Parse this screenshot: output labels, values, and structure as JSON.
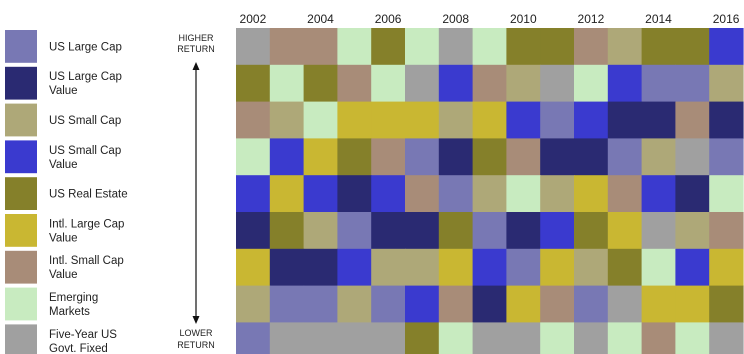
{
  "chart_data": {
    "type": "heatmap",
    "title": "",
    "x_tick_labels": [
      "2002",
      "2004",
      "2006",
      "2008",
      "2010",
      "2012",
      "2014",
      "2016"
    ],
    "years": [
      2002,
      2003,
      2004,
      2005,
      2006,
      2007,
      2008,
      2009,
      2010,
      2011,
      2012,
      2013,
      2014,
      2015,
      2016
    ],
    "y_top_label": [
      "HIGHER",
      "RETURN"
    ],
    "y_bottom_label": [
      "LOWER",
      "RETURN"
    ],
    "asset_classes": [
      {
        "key": "A",
        "label_lines": [
          "US Large Cap"
        ],
        "color": "#7878B4"
      },
      {
        "key": "B",
        "label_lines": [
          "US Large Cap",
          "Value"
        ],
        "color": "#2A2A72"
      },
      {
        "key": "C",
        "label_lines": [
          "US Small Cap"
        ],
        "color": "#AEA878"
      },
      {
        "key": "D",
        "label_lines": [
          "US Small Cap",
          "Value"
        ],
        "color": "#3A3ACF"
      },
      {
        "key": "E",
        "label_lines": [
          "US Real Estate"
        ],
        "color": "#85802A"
      },
      {
        "key": "F",
        "label_lines": [
          "Intl. Large Cap",
          "Value"
        ],
        "color": "#C9B732"
      },
      {
        "key": "G",
        "label_lines": [
          "Intl. Small Cap",
          "Value"
        ],
        "color": "#A88C78"
      },
      {
        "key": "H",
        "label_lines": [
          "Emerging",
          "Markets"
        ],
        "color": "#C8EBC0"
      },
      {
        "key": "I",
        "label_lines": [
          "Five-Year US",
          "Govt. Fixed"
        ],
        "color": "#A0A0A0"
      }
    ],
    "ranking_rows": [
      [
        "I",
        "G",
        "G",
        "H",
        "E",
        "H",
        "I",
        "H",
        "E",
        "E",
        "G",
        "C",
        "E",
        "E",
        "D"
      ],
      [
        "E",
        "H",
        "E",
        "G",
        "H",
        "I",
        "D",
        "G",
        "C",
        "I",
        "H",
        "D",
        "A",
        "A",
        "C"
      ],
      [
        "G",
        "C",
        "H",
        "F",
        "F",
        "F",
        "C",
        "F",
        "D",
        "A",
        "D",
        "B",
        "B",
        "G",
        "B"
      ],
      [
        "H",
        "D",
        "F",
        "E",
        "G",
        "A",
        "B",
        "E",
        "G",
        "B",
        "B",
        "A",
        "C",
        "I",
        "A"
      ],
      [
        "D",
        "F",
        "D",
        "B",
        "D",
        "G",
        "A",
        "C",
        "H",
        "C",
        "F",
        "G",
        "D",
        "B",
        "H"
      ],
      [
        "B",
        "E",
        "C",
        "A",
        "B",
        "B",
        "E",
        "A",
        "B",
        "D",
        "E",
        "F",
        "I",
        "C",
        "G"
      ],
      [
        "F",
        "B",
        "B",
        "D",
        "C",
        "C",
        "F",
        "D",
        "A",
        "F",
        "C",
        "E",
        "H",
        "D",
        "F"
      ],
      [
        "C",
        "A",
        "A",
        "C",
        "A",
        "D",
        "G",
        "B",
        "F",
        "G",
        "A",
        "I",
        "F",
        "F",
        "E"
      ],
      [
        "A",
        "I",
        "I",
        "I",
        "I",
        "E",
        "H",
        "I",
        "I",
        "H",
        "I",
        "H",
        "G",
        "H",
        "I"
      ]
    ]
  }
}
